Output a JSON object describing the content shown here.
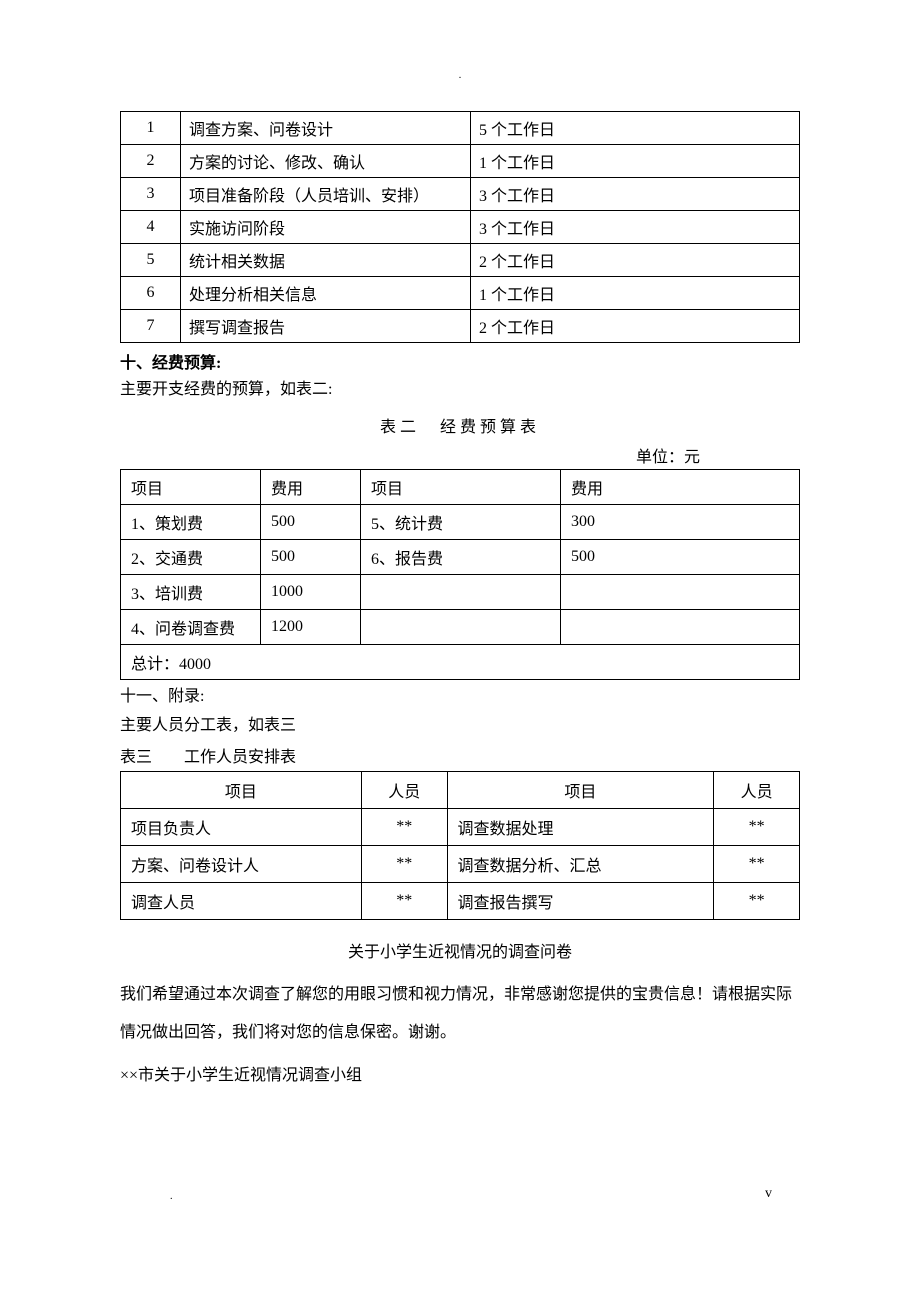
{
  "top_dot": ".",
  "table1": {
    "rows": [
      [
        "1",
        "调查方案、问卷设计",
        "5 个工作日"
      ],
      [
        "2",
        "方案的讨论、修改、确认",
        "1 个工作日"
      ],
      [
        "3",
        "项目准备阶段（人员培训、安排）",
        "3 个工作日"
      ],
      [
        "4",
        "实施访问阶段",
        "3 个工作日"
      ],
      [
        "5",
        "统计相关数据",
        "2 个工作日"
      ],
      [
        "6",
        "处理分析相关信息",
        "1 个工作日"
      ],
      [
        "7",
        "撰写调查报告",
        "2 个工作日"
      ]
    ]
  },
  "section10": {
    "heading": "十、经费预算:",
    "subtext": "主要开支经费的预算，如表二:",
    "caption": "表二　经费预算表",
    "unit": "单位：元"
  },
  "table2": {
    "headers": [
      "项目",
      "费用",
      "项目",
      "费用"
    ],
    "rows": [
      [
        "1、策划费",
        "500",
        "5、统计费",
        "300"
      ],
      [
        "2、交通费",
        "500",
        "6、报告费",
        "500"
      ],
      [
        "3、培训费",
        "1000",
        "",
        ""
      ],
      [
        "4、问卷调查费",
        "1200",
        "",
        ""
      ]
    ],
    "total": "总计：4000"
  },
  "section11": {
    "heading": "十一、附录:",
    "subtext": "主要人员分工表，如表三",
    "caption": "表三　　工作人员安排表"
  },
  "table3": {
    "headers": [
      "项目",
      "人员",
      "项目",
      "人员"
    ],
    "rows": [
      [
        "项目负责人",
        "**",
        "调查数据处理",
        "**"
      ],
      [
        "方案、问卷设计人",
        "**",
        "调查数据分析、汇总",
        "**"
      ],
      [
        "调查人员",
        "**",
        "调查报告撰写",
        "**"
      ]
    ]
  },
  "survey": {
    "title": "关于小学生近视情况的调查问卷",
    "para": "我们希望通过本次调查了解您的用眼习惯和视力情况，非常感谢您提供的宝贵信息！请根据实际情况做出回答，我们将对您的信息保密。谢谢。",
    "org": "××市关于小学生近视情况调查小组"
  },
  "footer": {
    "dot": ".",
    "v": "v"
  }
}
